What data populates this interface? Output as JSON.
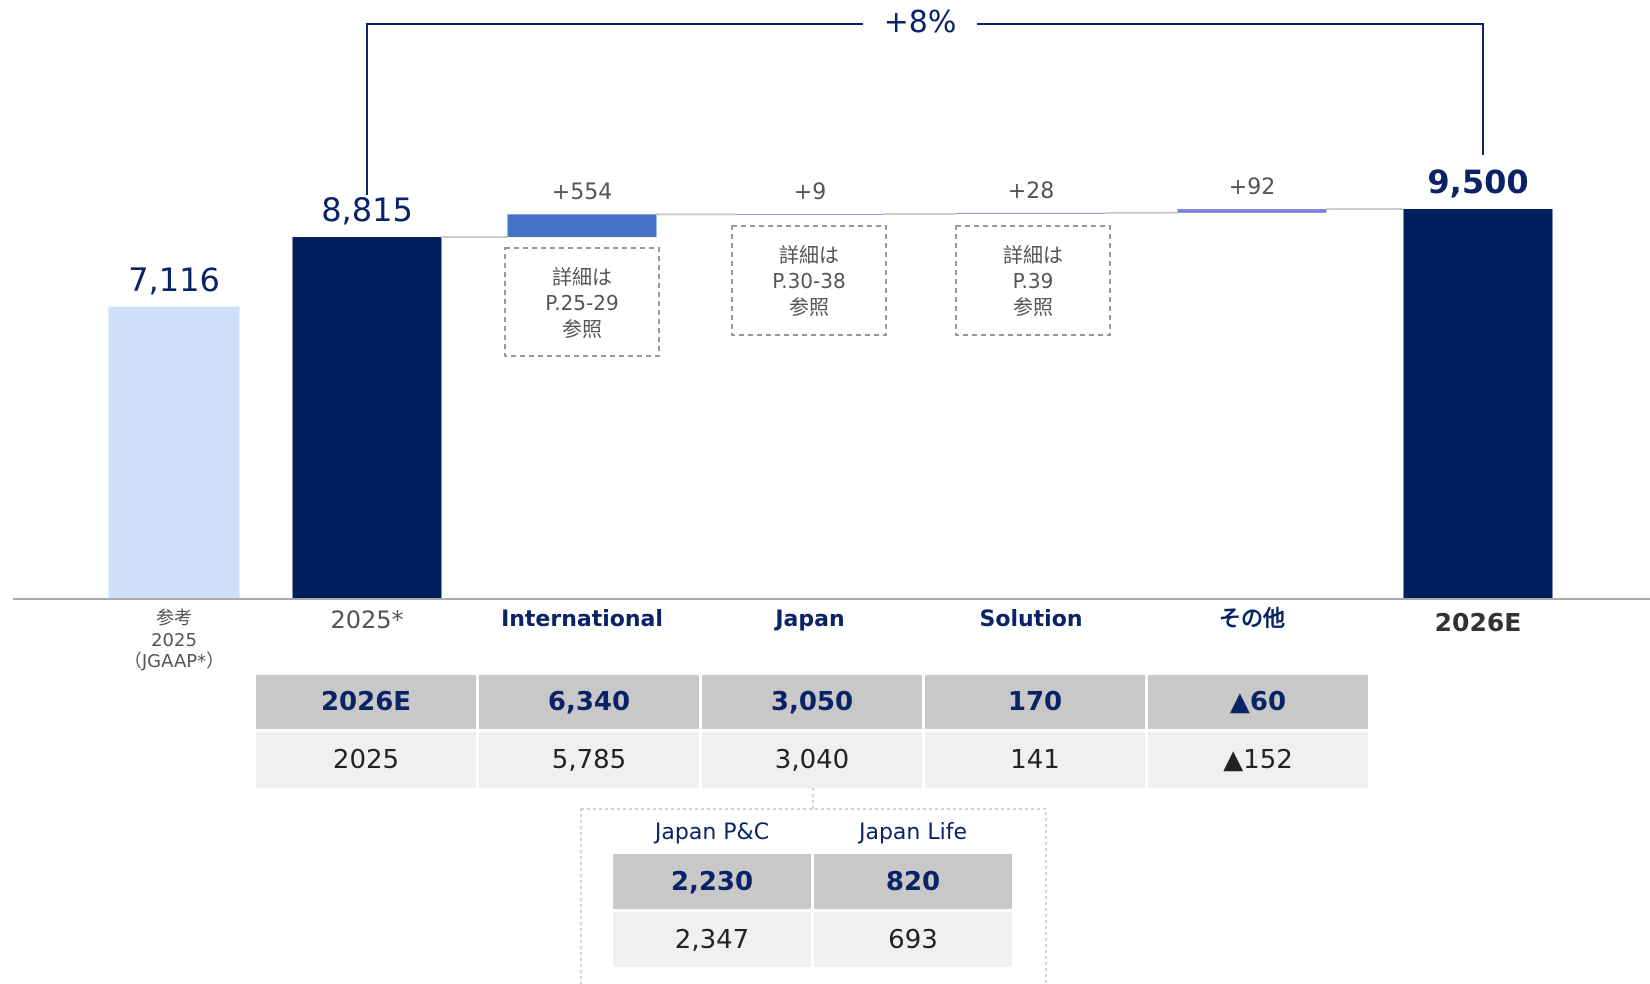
{
  "chart_data": {
    "type": "waterfall",
    "categories": [
      "参考\n2025\n（JGAAP*）",
      "2025*",
      "International",
      "Japan",
      "Solution",
      "その他",
      "2026E"
    ],
    "values": [
      7116,
      8815,
      554,
      9,
      28,
      92,
      9500
    ],
    "value_labels": [
      "7,116",
      "8,815",
      "+554",
      "+9",
      "+28",
      "+92",
      "9,500"
    ],
    "kinds": [
      "reference",
      "total",
      "delta",
      "delta",
      "delta",
      "delta",
      "total"
    ],
    "colors": [
      "#cddffb",
      "#001f5c",
      "#4472c4",
      "#9a9ae6",
      "#9a9ae6",
      "#7f80db",
      "#001f5c"
    ],
    "bracket_label": "+8%",
    "notes": [
      "詳細は\nP.25-29\n参照",
      "詳細は\nP.30-38\n参照",
      "詳細は\nP.39\n参照"
    ]
  },
  "table": {
    "rows": [
      [
        "2026E",
        "6,340",
        "3,050",
        "170",
        "▲60"
      ],
      [
        "2025",
        "5,785",
        "3,040",
        "141",
        "▲152"
      ]
    ]
  },
  "subtable": {
    "columns": [
      "Japan P&C",
      "Japan Life"
    ],
    "rows": [
      [
        "2,230",
        "820"
      ],
      [
        "2,347",
        "693"
      ]
    ]
  }
}
